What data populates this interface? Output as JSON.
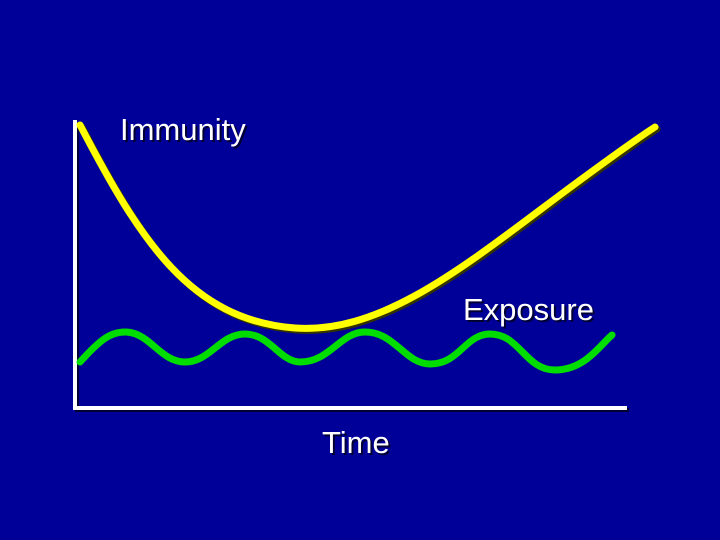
{
  "labels": {
    "immunity": "Immunity",
    "exposure": "Exposure",
    "time": "Time"
  }
}
